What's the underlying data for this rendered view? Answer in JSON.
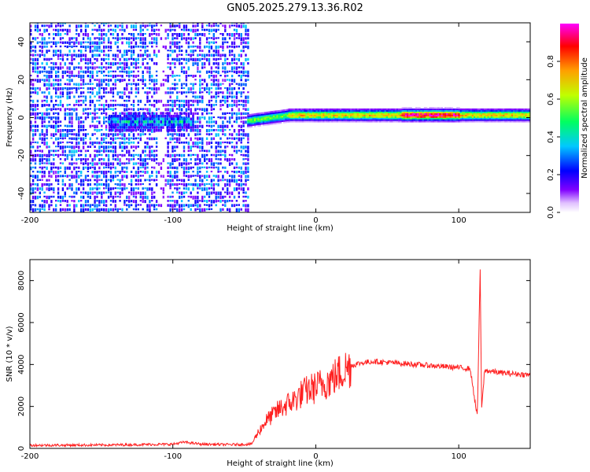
{
  "title": "GN05.2025.279.13.36.R02",
  "chart_data": [
    {
      "type": "heatmap",
      "title": "GN05.2025.279.13.36.R02",
      "xlabel": "Height of straight line (km)",
      "ylabel": "Frequency (Hz)",
      "xlim": [
        -200,
        150
      ],
      "ylim": [
        -50,
        50
      ],
      "xticks": [
        -200,
        -100,
        0,
        100
      ],
      "yticks": [
        -40,
        -20,
        0,
        20,
        40
      ],
      "colorbar": {
        "label": "Normalized spectral amplitude",
        "range": [
          0.0,
          1.0
        ],
        "ticks": [
          0.0,
          0.2,
          0.4,
          0.6,
          0.8
        ],
        "colors": [
          "#ffffff",
          "#8000ff",
          "#0000ff",
          "#00ffff",
          "#00ff00",
          "#ffff00",
          "#ff0000",
          "#ff00ff"
        ]
      },
      "features": [
        {
          "name": "noise",
          "x_range": [
            -200,
            -48
          ],
          "freq_range": [
            -50,
            50
          ],
          "amplitude": 0.15
        },
        {
          "name": "weak-signal",
          "x_range": [
            -145,
            -85
          ],
          "freq_center": -3,
          "amplitude": 0.35
        },
        {
          "name": "meteor-trail",
          "x_range": [
            -48,
            150
          ],
          "freq_center": 1,
          "amplitude": 0.8
        }
      ]
    },
    {
      "type": "line",
      "xlabel": "Height of straight line (km)",
      "ylabel": "SNR (10 * v/v)",
      "xlim": [
        -200,
        150
      ],
      "ylim": [
        0,
        9000
      ],
      "xticks": [
        -200,
        -100,
        0,
        100
      ],
      "yticks": [
        0,
        2000,
        4000,
        6000,
        8000
      ],
      "series": [
        {
          "name": "SNR",
          "color": "#ff2020",
          "x": [
            -200,
            -150,
            -100,
            -92,
            -80,
            -60,
            -45,
            -40,
            -35,
            -30,
            -25,
            -20,
            -15,
            -10,
            -5,
            0,
            5,
            10,
            15,
            20,
            25,
            30,
            40,
            50,
            60,
            70,
            80,
            90,
            100,
            108,
            113,
            115,
            116,
            118,
            120,
            130,
            140,
            150
          ],
          "y": [
            150,
            160,
            200,
            300,
            200,
            180,
            200,
            800,
            1300,
            1600,
            1900,
            2100,
            2300,
            2600,
            2800,
            2900,
            3100,
            3250,
            3500,
            3750,
            3950,
            4050,
            4150,
            4100,
            4050,
            4000,
            3950,
            3900,
            3850,
            3800,
            1500,
            8600,
            1800,
            3700,
            3700,
            3600,
            3550,
            3500
          ]
        }
      ]
    }
  ]
}
